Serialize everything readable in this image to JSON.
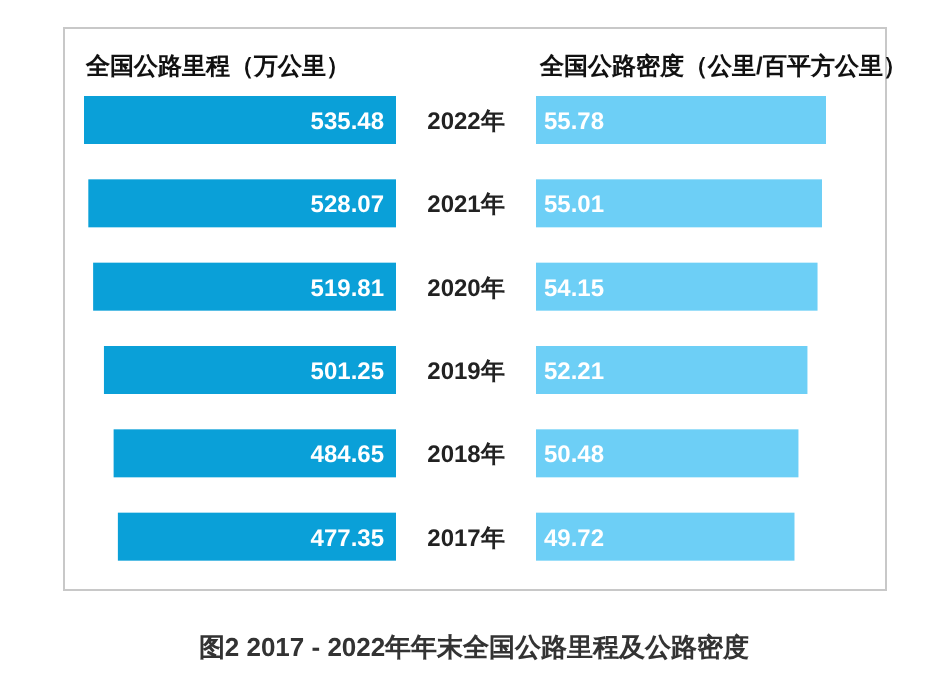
{
  "chart_data": [
    {
      "type": "bar",
      "orientation": "horizontal",
      "title": "全国公路里程（万公里）",
      "categories": [
        "2022年",
        "2021年",
        "2020年",
        "2019年",
        "2018年",
        "2017年"
      ],
      "values": [
        535.48,
        528.07,
        519.81,
        501.25,
        484.65,
        477.35
      ],
      "color": "#0aa0d8",
      "data_labels": true,
      "tick_labels": "y",
      "annotations": [
        "图2   2017 - 2022年年末全国公路里程及公路密度"
      ]
    },
    {
      "type": "bar",
      "orientation": "horizontal",
      "title": "全国公路密度（公里/百平方公里）",
      "categories": [
        "2022年",
        "2021年",
        "2020年",
        "2019年",
        "2018年",
        "2017年"
      ],
      "values": [
        55.78,
        55.01,
        54.15,
        52.21,
        50.48,
        49.72
      ],
      "color": "#6dcff6",
      "data_labels": true,
      "tick_labels": false
    }
  ]
}
